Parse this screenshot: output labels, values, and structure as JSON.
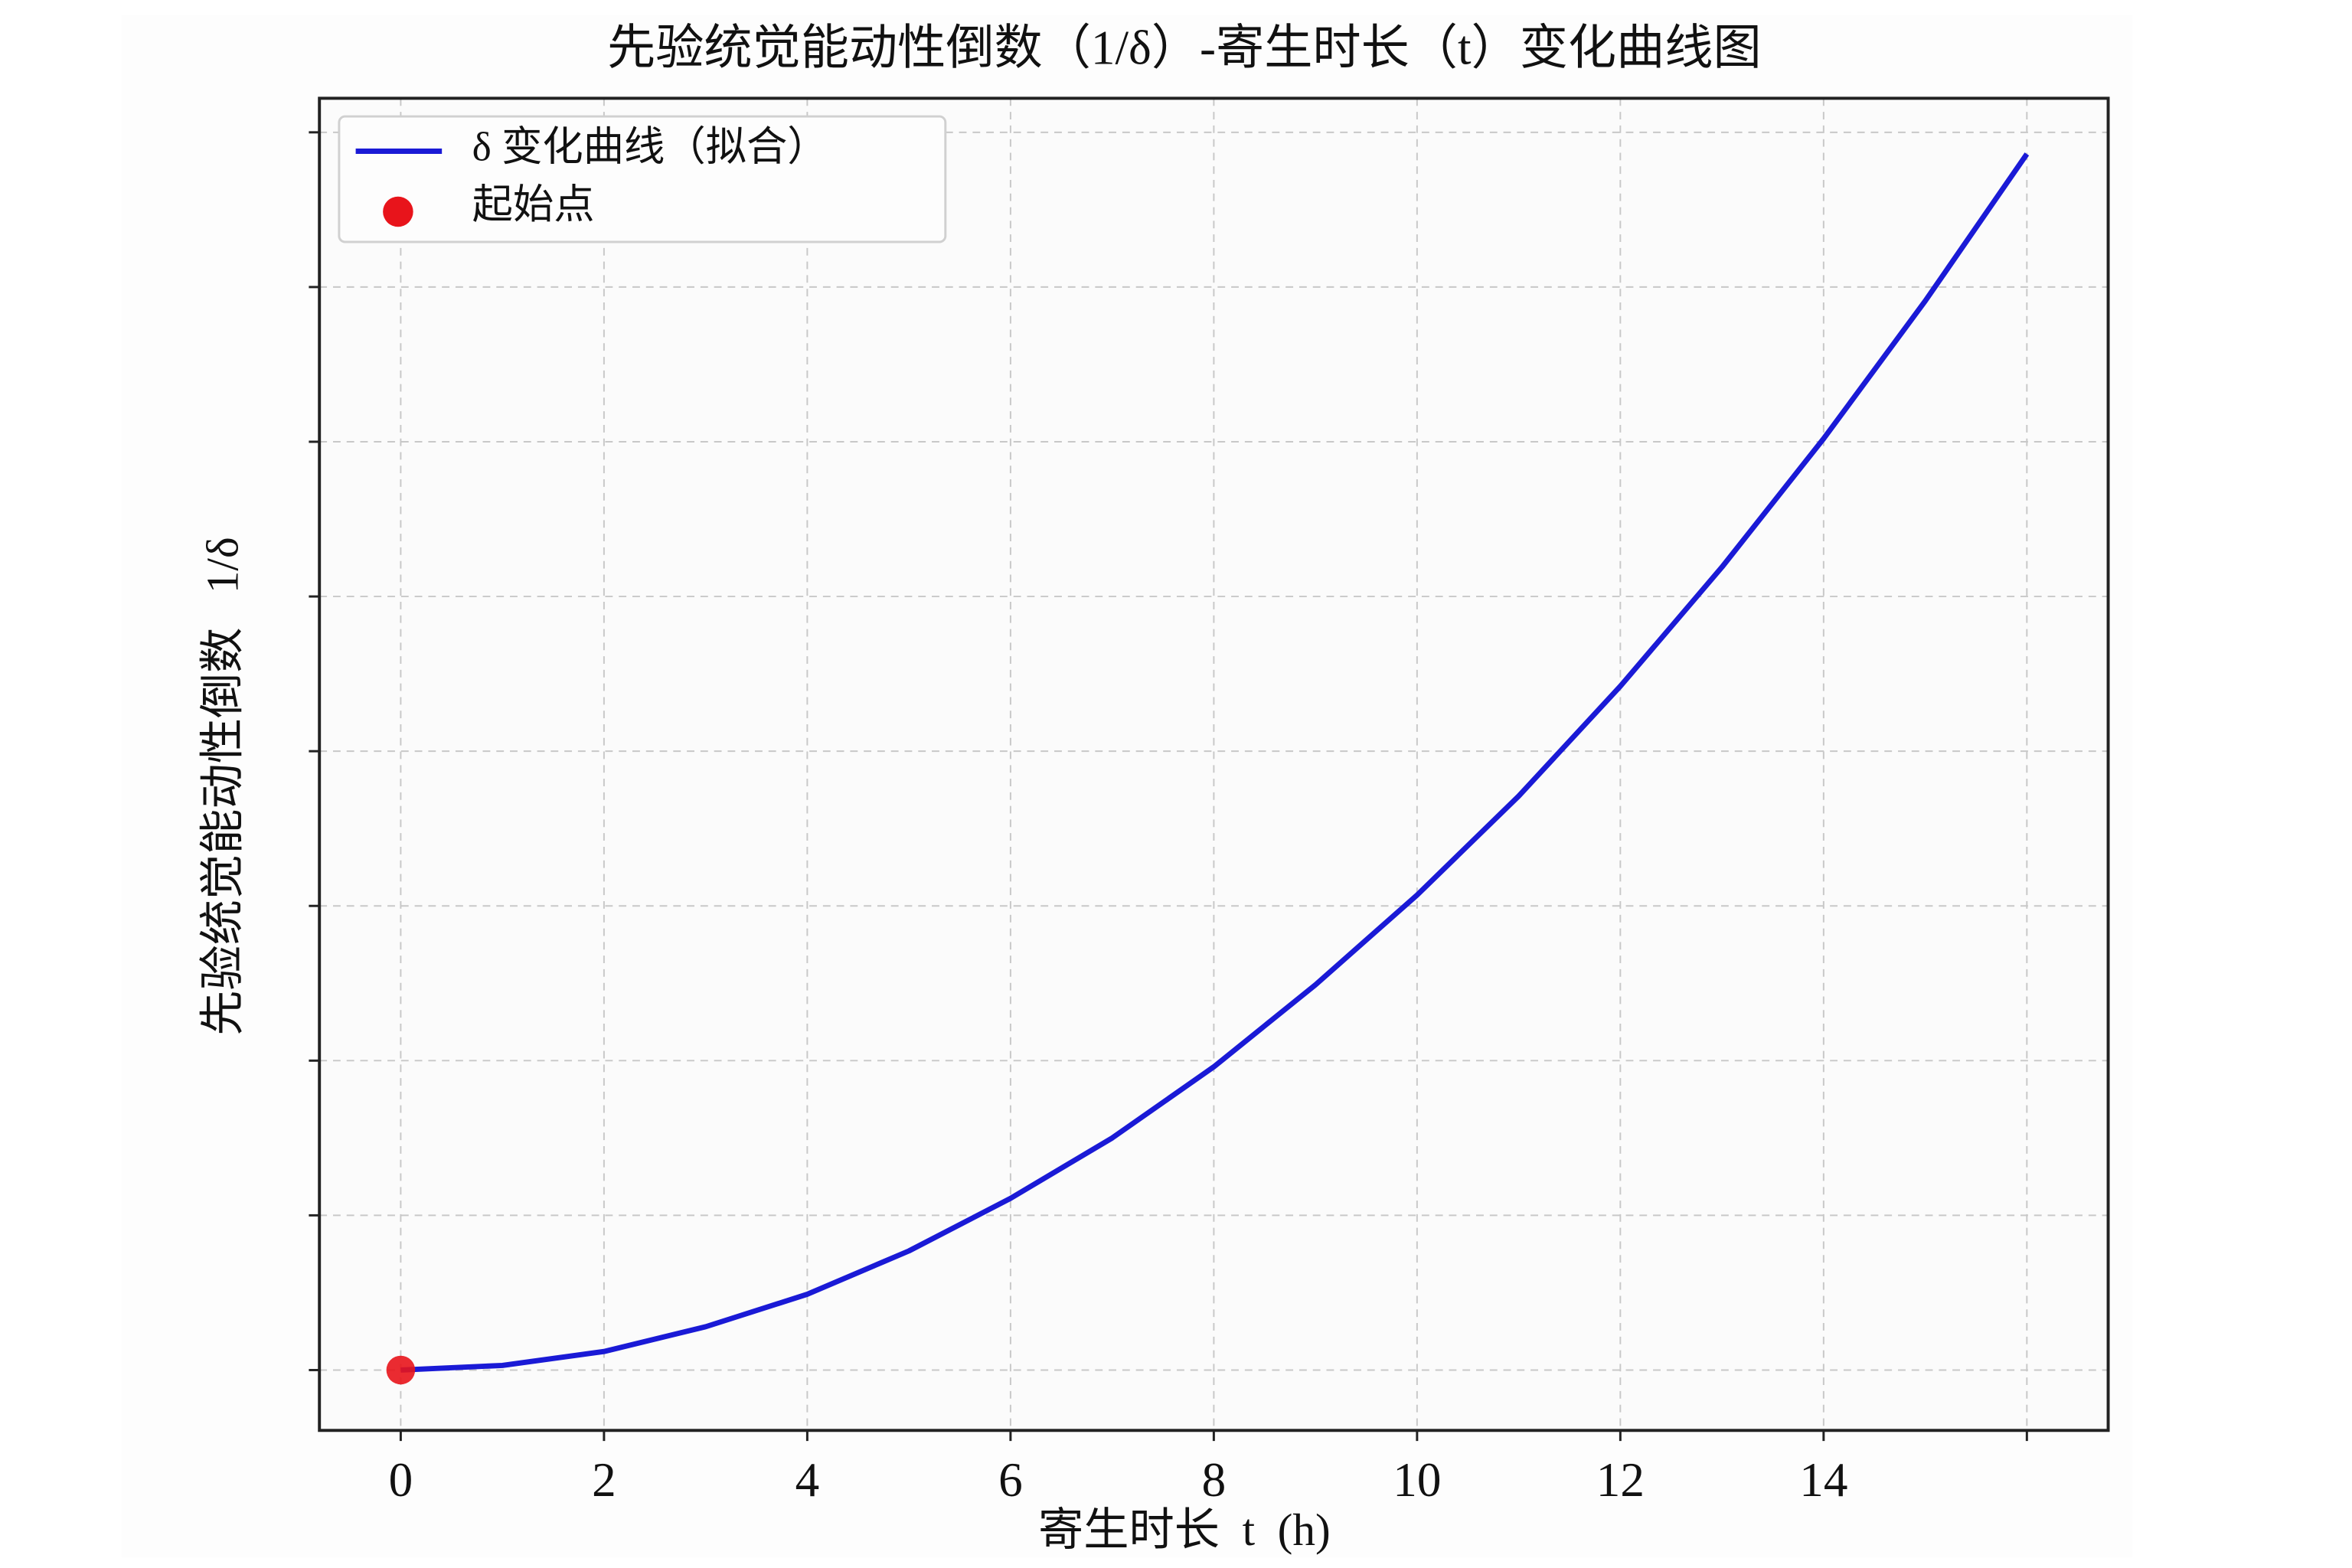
{
  "chart_data": {
    "type": "line",
    "title": "先验统觉能动性倒数（1/δ）-寄生时长（t）变化曲线图",
    "x_label": "寄生时长  t  (h)",
    "y_label": "先验统觉能动性倒数   1/δ",
    "x": [
      0,
      1,
      2,
      3,
      4,
      5,
      6,
      7,
      8,
      9,
      10,
      11,
      12,
      13,
      14,
      15,
      16
    ],
    "series": [
      {
        "name": "δ 变化曲线（拟合）",
        "type": "line",
        "color": "#1a1ad6",
        "values": [
          0,
          0.03,
          0.12,
          0.28,
          0.49,
          0.77,
          1.11,
          1.5,
          1.96,
          2.49,
          3.07,
          3.71,
          4.42,
          5.19,
          6.02,
          6.91,
          7.86
        ]
      },
      {
        "name": "起始点",
        "type": "scatter",
        "color": "#e8141b",
        "x": [
          0
        ],
        "values": [
          0
        ]
      }
    ],
    "xlim": [
      -0.8,
      16.8
    ],
    "xticks": [
      0,
      2,
      4,
      6,
      8,
      10,
      12,
      14,
      {
        "value": 16,
        "label": null
      }
    ],
    "ylim": [
      -0.39,
      8.22
    ],
    "yticks": [
      {
        "value": 0,
        "label": null
      },
      {
        "value": 1,
        "label": null
      },
      {
        "value": 2,
        "label": null
      },
      {
        "value": 3,
        "label": null
      },
      {
        "value": 4,
        "label": null
      },
      {
        "value": 5,
        "label": null
      },
      {
        "value": 6,
        "label": null
      },
      {
        "value": 7,
        "label": null
      },
      {
        "value": 8,
        "label": null
      }
    ],
    "grid": true,
    "legend": "upper left"
  }
}
